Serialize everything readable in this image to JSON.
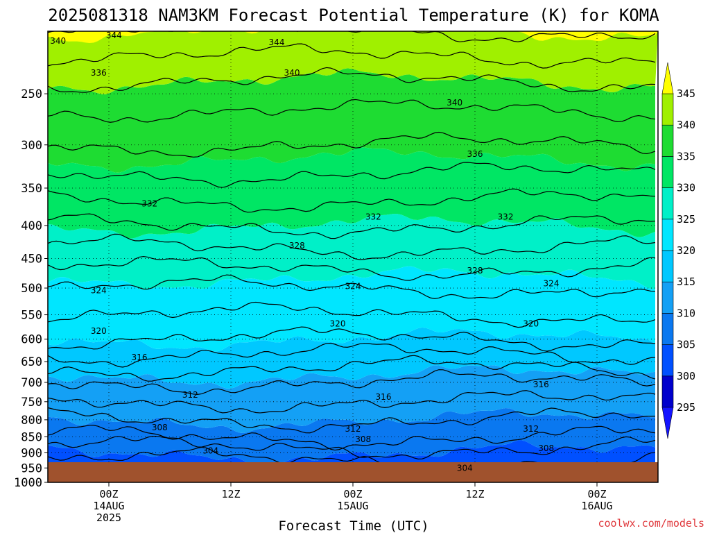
{
  "chart_data": {
    "type": "heatmap",
    "title": "2025081318 NAM3KM Forecast Potential Temperature (K) for KOMA",
    "xlabel": "Forecast Time (UTC)",
    "ylabel": "",
    "x_ticks": [
      {
        "line1": "00Z",
        "line2": "14AUG",
        "line3": "2025",
        "hour": 6
      },
      {
        "line1": "12Z",
        "line2": "",
        "line3": "",
        "hour": 18
      },
      {
        "line1": "00Z",
        "line2": "15AUG",
        "line3": "",
        "hour": 30
      },
      {
        "line1": "12Z",
        "line2": "",
        "line3": "",
        "hour": 42
      },
      {
        "line1": "00Z",
        "line2": "16AUG",
        "line3": "",
        "hour": 54
      }
    ],
    "xlim_hours": [
      0,
      60
    ],
    "y_ticks": [
      250,
      300,
      350,
      400,
      450,
      500,
      550,
      600,
      650,
      700,
      750,
      800,
      850,
      900,
      950,
      1000
    ],
    "ylim_hpa": [
      200,
      1000
    ],
    "y_scale": "log (pressure)",
    "grid": true,
    "colorbar": {
      "levels": [
        "295",
        "300",
        "305",
        "310",
        "315",
        "320",
        "325",
        "330",
        "335",
        "340",
        "345"
      ],
      "colors": [
        "#1414ff",
        "#0000cc",
        "#0050ff",
        "#0a78f0",
        "#14a0f5",
        "#00c8ff",
        "#00e6ff",
        "#00f0c8",
        "#00e664",
        "#1edc32",
        "#a0f000",
        "#ffff00"
      ],
      "extend": "both"
    },
    "theta_profile": [
      {
        "p": 200,
        "theta": 344
      },
      {
        "p": 250,
        "theta": 339
      },
      {
        "p": 300,
        "theta": 336
      },
      {
        "p": 350,
        "theta": 333
      },
      {
        "p": 400,
        "theta": 330
      },
      {
        "p": 450,
        "theta": 327
      },
      {
        "p": 500,
        "theta": 324
      },
      {
        "p": 550,
        "theta": 322
      },
      {
        "p": 600,
        "theta": 320
      },
      {
        "p": 650,
        "theta": 317
      },
      {
        "p": 700,
        "theta": 314
      },
      {
        "p": 750,
        "theta": 312
      },
      {
        "p": 800,
        "theta": 310
      },
      {
        "p": 850,
        "theta": 308
      },
      {
        "p": 900,
        "theta": 305
      },
      {
        "p": 950,
        "theta": 303
      },
      {
        "p": 1000,
        "theta": 302
      }
    ],
    "contour_labels": [
      {
        "text": "344",
        "hour": 6.5,
        "p": 203
      },
      {
        "text": "340",
        "hour": 1.0,
        "p": 207
      },
      {
        "text": "344",
        "hour": 22.5,
        "p": 208
      },
      {
        "text": "336",
        "hour": 5.0,
        "p": 232
      },
      {
        "text": "340",
        "hour": 24.0,
        "p": 232
      },
      {
        "text": "340",
        "hour": 40.0,
        "p": 258
      },
      {
        "text": "336",
        "hour": 42.0,
        "p": 310
      },
      {
        "text": "332",
        "hour": 10.0,
        "p": 370
      },
      {
        "text": "332",
        "hour": 32.0,
        "p": 388
      },
      {
        "text": "332",
        "hour": 45.0,
        "p": 388
      },
      {
        "text": "328",
        "hour": 24.5,
        "p": 430
      },
      {
        "text": "328",
        "hour": 42.0,
        "p": 470
      },
      {
        "text": "324",
        "hour": 5.0,
        "p": 504
      },
      {
        "text": "324",
        "hour": 30.0,
        "p": 497
      },
      {
        "text": "324",
        "hour": 49.5,
        "p": 492
      },
      {
        "text": "320",
        "hour": 5.0,
        "p": 583
      },
      {
        "text": "320",
        "hour": 28.5,
        "p": 568
      },
      {
        "text": "320",
        "hour": 47.5,
        "p": 568
      },
      {
        "text": "316",
        "hour": 9.0,
        "p": 640
      },
      {
        "text": "316",
        "hour": 33.0,
        "p": 737
      },
      {
        "text": "316",
        "hour": 48.5,
        "p": 705
      },
      {
        "text": "312",
        "hour": 14.0,
        "p": 732
      },
      {
        "text": "312",
        "hour": 30.0,
        "p": 826
      },
      {
        "text": "312",
        "hour": 47.5,
        "p": 826
      },
      {
        "text": "308",
        "hour": 11.0,
        "p": 822
      },
      {
        "text": "308",
        "hour": 31.0,
        "p": 858
      },
      {
        "text": "308",
        "hour": 49.0,
        "p": 886
      },
      {
        "text": "304",
        "hour": 16.0,
        "p": 894
      },
      {
        "text": "304",
        "hour": 41.0,
        "p": 951
      }
    ]
  },
  "footer": {
    "credit": "coolwx.com/models"
  },
  "style": {
    "ground": "#a0522d",
    "contour": "#000000"
  }
}
